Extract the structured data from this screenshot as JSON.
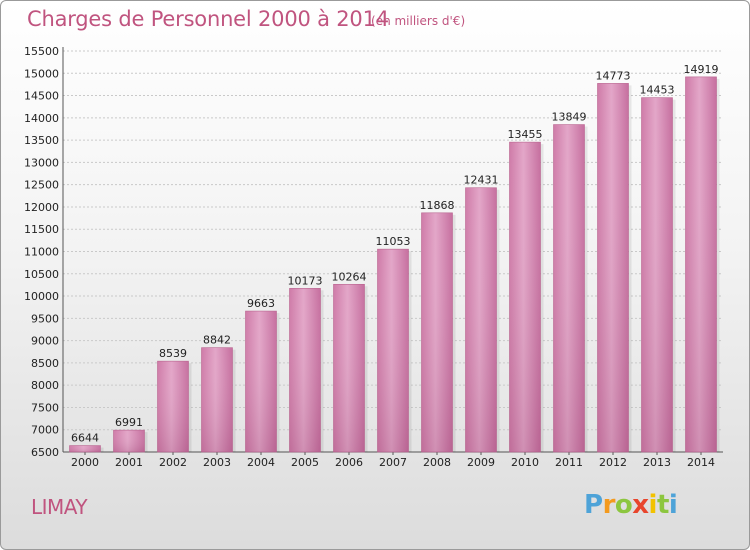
{
  "chart_data": {
    "type": "bar",
    "title": "Charges de Personnel 2000 à 2014",
    "subtitle": "(en milliers d'€)",
    "xlabel": "",
    "ylabel": "",
    "ylim": [
      6500,
      15500
    ],
    "y_ticks": [
      6500,
      7000,
      7500,
      8000,
      8500,
      9000,
      9500,
      10000,
      10500,
      11000,
      11500,
      12000,
      12500,
      13000,
      13500,
      14000,
      14500,
      15000,
      15500
    ],
    "categories": [
      "2000",
      "2001",
      "2002",
      "2003",
      "2004",
      "2005",
      "2006",
      "2007",
      "2008",
      "2009",
      "2010",
      "2011",
      "2012",
      "2013",
      "2014"
    ],
    "values": [
      6644,
      6991,
      8539,
      8842,
      9663,
      10173,
      10264,
      11053,
      11868,
      12431,
      13455,
      13849,
      14773,
      14453,
      14919
    ],
    "grid": true,
    "bar_color": "#d98bb5"
  },
  "commune": "LIMAY",
  "logo": {
    "letters": [
      "P",
      "r",
      "o",
      "x",
      "i",
      "t",
      "i"
    ],
    "colors": [
      "#4ea3d8",
      "#f39a1e",
      "#8cc63f",
      "#e8452c",
      "#f2c200",
      "#8cc63f",
      "#4ea3d8"
    ]
  }
}
